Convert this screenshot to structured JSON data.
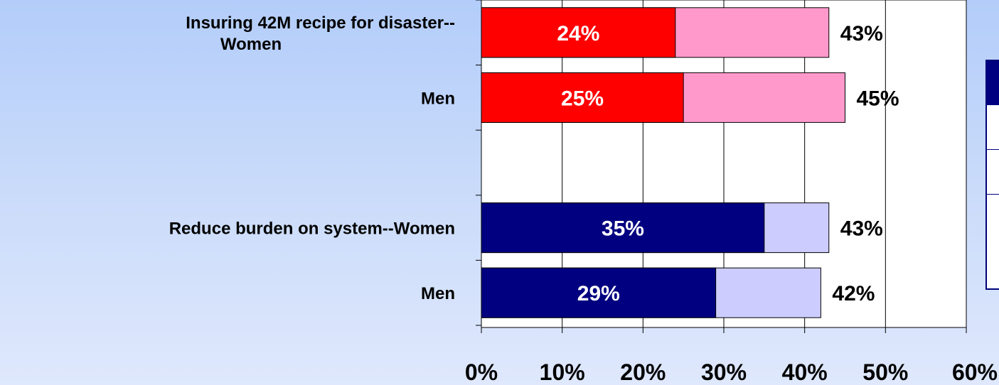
{
  "chart_data": {
    "type": "bar",
    "orientation": "horizontal",
    "stacked_overlay": true,
    "categories": [
      "Insuring 42M recipe for disaster--\nWomen",
      "Men",
      "",
      "Reduce burden on system--Women",
      "Men"
    ],
    "series": [
      {
        "values": [
          24,
          25,
          null,
          35,
          29
        ],
        "labels": [
          "24%",
          "25%",
          "",
          "35%",
          "29%"
        ]
      },
      {
        "values": [
          43,
          45,
          null,
          43,
          42
        ],
        "labels": [
          "43%",
          "45%",
          "",
          "43%",
          "42%"
        ]
      }
    ],
    "bar_colors": {
      "inner": [
        "#ff0000",
        "#ff0000",
        null,
        "#000080",
        "#000080"
      ],
      "outer": [
        "#ff99cc",
        "#ff99cc",
        null,
        "#ccccff",
        "#ccccff"
      ]
    },
    "xlim": [
      0,
      60
    ],
    "xticks": [
      0,
      10,
      20,
      30,
      40,
      50,
      60
    ],
    "xtick_labels": [
      "0%",
      "10%",
      "20%",
      "30%",
      "40%",
      "50%",
      "60%"
    ],
    "grid": true,
    "legend_placement": "right (cropped)",
    "title": "",
    "xlabel": "",
    "ylabel": ""
  }
}
